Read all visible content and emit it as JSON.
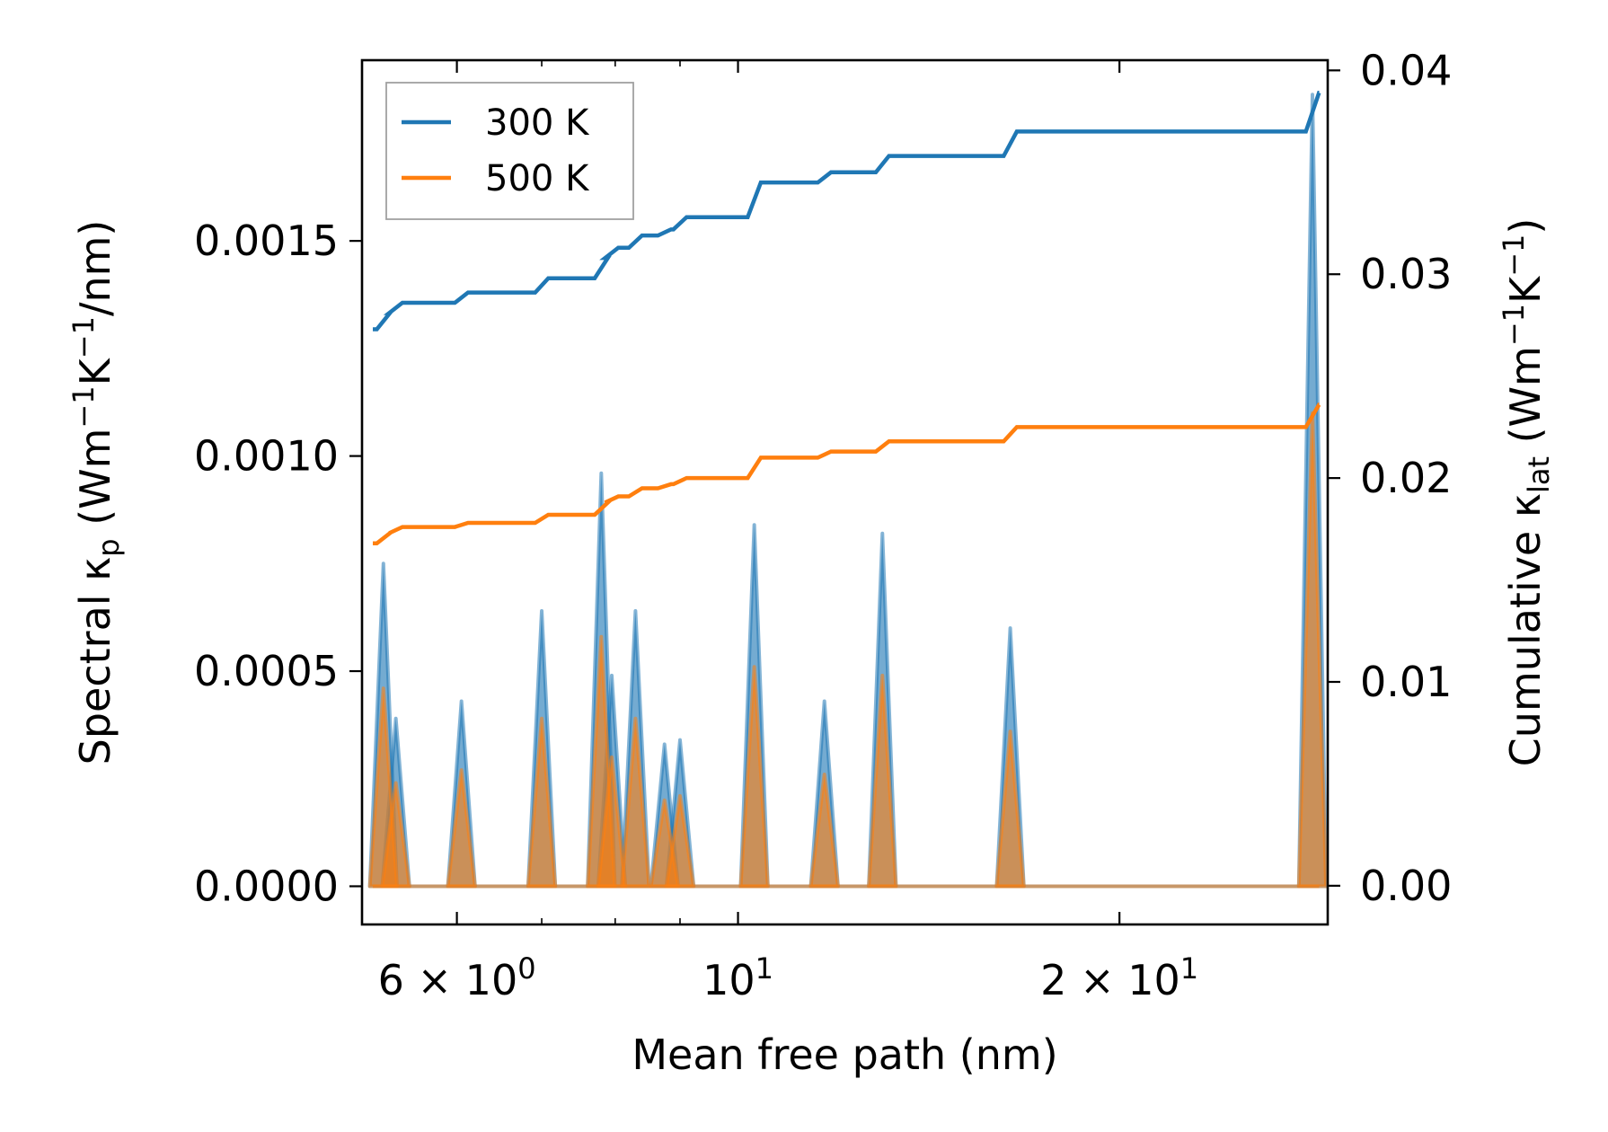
{
  "chart_data": {
    "type": "line",
    "xlabel": "Mean free path (nm)",
    "x_scale": "log",
    "xlim": [
      5.05,
      29.2
    ],
    "x_ticks": [
      {
        "value": 6,
        "mantissa": "6",
        "base": "10",
        "exp": "0"
      },
      {
        "value": 10,
        "mantissa": "",
        "base": "10",
        "exp": "1"
      },
      {
        "value": 20,
        "mantissa": "2",
        "base": "10",
        "exp": "1"
      }
    ],
    "y_left": {
      "label_main": "Spectral κ",
      "label_sub": "p",
      "label_units": {
        "open": " (Wm",
        "exp1": "−1",
        "mid": "K",
        "exp2": "−1",
        "close": "/nm)"
      },
      "ylim": [
        -8.88e-05,
        0.00192
      ],
      "ticks": [
        {
          "value": 0.0,
          "label": "0.0000"
        },
        {
          "value": 0.0005,
          "label": "0.0005"
        },
        {
          "value": 0.001,
          "label": "0.0010"
        },
        {
          "value": 0.0015,
          "label": "0.0015"
        }
      ]
    },
    "y_right": {
      "label_main": "Cumulative κ",
      "label_sub": "lat",
      "label_units": {
        "open": " (Wm",
        "exp1": "−1",
        "mid": "K",
        "exp2": "−1",
        "close": ")"
      },
      "ylim": [
        -0.0019,
        0.0405
      ],
      "ticks": [
        {
          "value": 0.0,
          "label": "0.00"
        },
        {
          "value": 0.01,
          "label": "0.01"
        },
        {
          "value": 0.02,
          "label": "0.02"
        },
        {
          "value": 0.03,
          "label": "0.03"
        },
        {
          "value": 0.04,
          "label": "0.04"
        }
      ]
    },
    "legend": {
      "position": "top-left",
      "entries": [
        {
          "label": "300 K",
          "color": "#1f77b4"
        },
        {
          "label": "500 K",
          "color": "#ff7f0e"
        }
      ]
    },
    "colors": {
      "blue": "#1f77b4",
      "orange": "#ff7f0e",
      "legend_border": "#a0a0a0"
    },
    "spectral_series": [
      {
        "name": "300 K",
        "color": "#1f77b4",
        "peaks": [
          {
            "x": 5.25,
            "y": 0.00075
          },
          {
            "x": 5.37,
            "y": 0.00039
          },
          {
            "x": 6.05,
            "y": 0.00043
          },
          {
            "x": 7.0,
            "y": 0.00064
          },
          {
            "x": 7.8,
            "y": 0.00096
          },
          {
            "x": 7.95,
            "y": 0.00049
          },
          {
            "x": 8.3,
            "y": 0.00064
          },
          {
            "x": 8.75,
            "y": 0.00033
          },
          {
            "x": 9.0,
            "y": 0.00034
          },
          {
            "x": 10.3,
            "y": 0.00084
          },
          {
            "x": 11.7,
            "y": 0.00043
          },
          {
            "x": 13.0,
            "y": 0.00082
          },
          {
            "x": 16.4,
            "y": 0.0006
          },
          {
            "x": 28.4,
            "y": 0.00184
          }
        ]
      },
      {
        "name": "500 K",
        "color": "#ff7f0e",
        "peaks": [
          {
            "x": 5.25,
            "y": 0.00046
          },
          {
            "x": 5.37,
            "y": 0.00024
          },
          {
            "x": 6.05,
            "y": 0.00027
          },
          {
            "x": 7.0,
            "y": 0.00039
          },
          {
            "x": 7.8,
            "y": 0.00058
          },
          {
            "x": 7.95,
            "y": 0.0003
          },
          {
            "x": 8.3,
            "y": 0.00039
          },
          {
            "x": 8.75,
            "y": 0.0002
          },
          {
            "x": 9.0,
            "y": 0.00021
          },
          {
            "x": 10.3,
            "y": 0.00051
          },
          {
            "x": 11.7,
            "y": 0.00026
          },
          {
            "x": 13.0,
            "y": 0.00049
          },
          {
            "x": 16.4,
            "y": 0.00036
          },
          {
            "x": 28.4,
            "y": 0.0011
          }
        ]
      }
    ],
    "cumulative_series": [
      {
        "name": "300 K",
        "color": "#1f77b4",
        "start": {
          "x": 5.15,
          "y": 0.0273
        },
        "end_x": 28.75,
        "steps": [
          {
            "x": 5.25,
            "y": 0.0281
          },
          {
            "x": 5.37,
            "y": 0.0286
          },
          {
            "x": 6.05,
            "y": 0.0291
          },
          {
            "x": 7.0,
            "y": 0.0298
          },
          {
            "x": 7.8,
            "y": 0.0308
          },
          {
            "x": 7.95,
            "y": 0.0313
          },
          {
            "x": 8.3,
            "y": 0.0319
          },
          {
            "x": 8.75,
            "y": 0.0322
          },
          {
            "x": 9.0,
            "y": 0.0328
          },
          {
            "x": 10.3,
            "y": 0.0345
          },
          {
            "x": 11.7,
            "y": 0.035
          },
          {
            "x": 13.0,
            "y": 0.0358
          },
          {
            "x": 16.4,
            "y": 0.037
          },
          {
            "x": 28.4,
            "y": 0.0389
          }
        ]
      },
      {
        "name": "500 K",
        "color": "#ff7f0e",
        "start": {
          "x": 5.15,
          "y": 0.0168
        },
        "end_x": 28.75,
        "steps": [
          {
            "x": 5.25,
            "y": 0.0173
          },
          {
            "x": 5.37,
            "y": 0.0176
          },
          {
            "x": 6.05,
            "y": 0.0178
          },
          {
            "x": 7.0,
            "y": 0.0182
          },
          {
            "x": 7.8,
            "y": 0.0188
          },
          {
            "x": 7.95,
            "y": 0.0191
          },
          {
            "x": 8.3,
            "y": 0.0195
          },
          {
            "x": 8.75,
            "y": 0.0197
          },
          {
            "x": 9.0,
            "y": 0.02
          },
          {
            "x": 10.3,
            "y": 0.021
          },
          {
            "x": 11.7,
            "y": 0.0213
          },
          {
            "x": 13.0,
            "y": 0.0218
          },
          {
            "x": 16.4,
            "y": 0.0225
          },
          {
            "x": 28.4,
            "y": 0.0236
          }
        ]
      }
    ]
  }
}
